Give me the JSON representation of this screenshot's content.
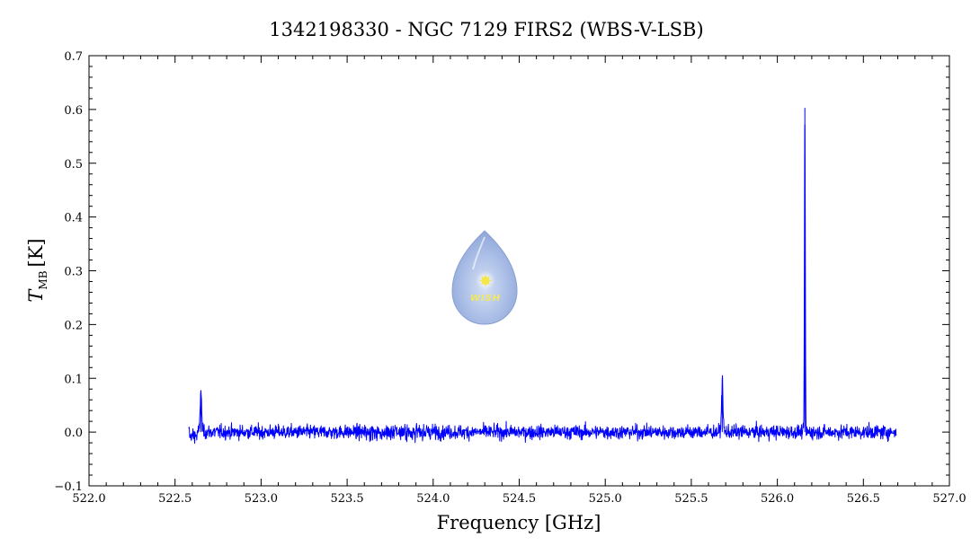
{
  "chart_data": {
    "type": "line",
    "title": "1342198330 - NGC 7129 FIRS2 (WBS-V-LSB)",
    "xlabel": "Frequency [GHz]",
    "ylabel_main": "T",
    "ylabel_sub": "MB",
    "ylabel_unit": "[K]",
    "xlim": [
      522.0,
      527.0
    ],
    "ylim": [
      -0.1,
      0.7
    ],
    "xticks": [
      "522.0",
      "522.5",
      "523.0",
      "523.5",
      "524.0",
      "524.5",
      "525.0",
      "525.5",
      "526.0",
      "526.5",
      "527.0"
    ],
    "yticks": [
      "−0.1",
      "0.0",
      "0.1",
      "0.2",
      "0.3",
      "0.4",
      "0.5",
      "0.6",
      "0.7"
    ],
    "grid": false,
    "series_color": "#0000ff",
    "series": [
      {
        "x_range": [
          522.58,
          526.69
        ],
        "baseline": 0.0,
        "noise_rms": 0.01,
        "peaks": [
          {
            "x": 522.65,
            "y": 0.077
          },
          {
            "x": 525.68,
            "y": 0.095
          },
          {
            "x": 526.16,
            "y": 0.603
          }
        ]
      }
    ]
  },
  "logo": {
    "text": "WISH",
    "color": "#9fb4e0"
  }
}
